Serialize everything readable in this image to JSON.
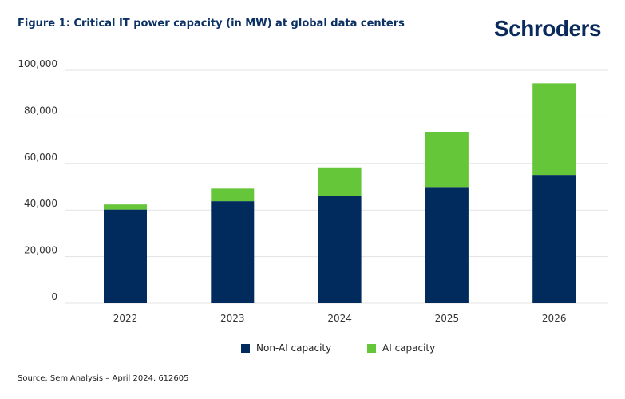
{
  "title": "Figure 1: Critical IT power capacity (in MW) at global data centers",
  "logo": "Schroders",
  "source": "Source: SemiAnalysis – April 2024. 612605",
  "chart_data": {
    "type": "bar",
    "stacked": true,
    "title": "Figure 1: Critical IT power capacity (in MW) at global data centers",
    "categories": [
      "2022",
      "2023",
      "2024",
      "2025",
      "2026"
    ],
    "series": [
      {
        "name": "Non-AI capacity",
        "color": "#002b5c",
        "values": [
          40200,
          43800,
          46100,
          49900,
          55100
        ]
      },
      {
        "name": "AI capacity",
        "color": "#66c63a",
        "values": [
          2200,
          5400,
          12200,
          23400,
          39300
        ]
      }
    ],
    "yticks": [
      "0",
      "20,000",
      "40,000",
      "60,000",
      "80,000",
      "100,000"
    ],
    "ylim": [
      0,
      100000
    ],
    "grid": true,
    "legend": "bottom"
  }
}
